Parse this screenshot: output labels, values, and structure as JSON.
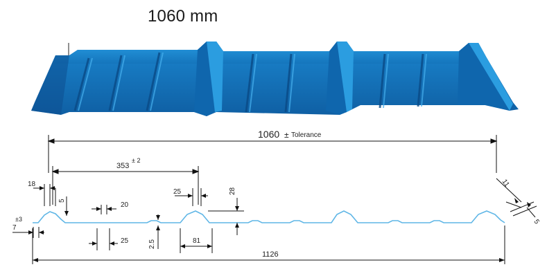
{
  "title": "1060 mm",
  "colors": {
    "panel_top": "#1f8fd6",
    "panel_mid": "#1575bd",
    "panel_dark": "#0d4f8f",
    "profile_line": "#5fb6e6",
    "dim_line": "#111111"
  },
  "dimensions": {
    "overall_effective": "1060",
    "tolerance_symbol": "±",
    "tolerance_word": "Tolerance",
    "pitch": "353",
    "pitch_tol": "± 2",
    "overall_total": "1126",
    "rib_top_left": "18",
    "rib_side_left": "5",
    "edge_offset": "7",
    "edge_tol": "±3",
    "small_rib_top": "20",
    "small_rib_bottom": "25",
    "small_rib_height": "2.5",
    "main_rib_top": "25",
    "main_rib_height": "28",
    "main_rib_bottom": "81",
    "right_a": "11",
    "right_b": "5"
  }
}
